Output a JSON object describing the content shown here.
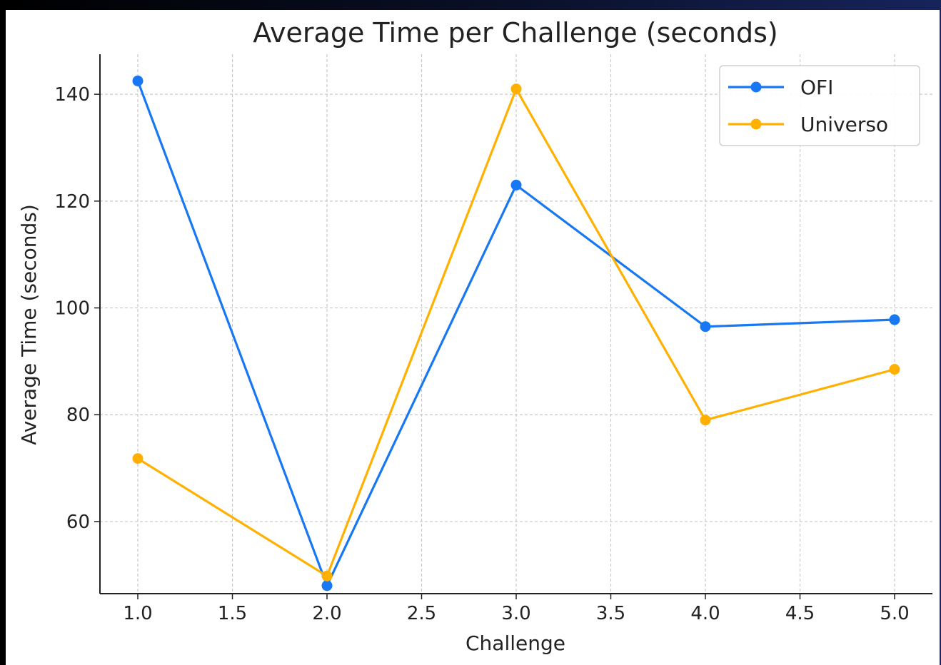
{
  "chart_data": {
    "type": "line",
    "title": "Average Time per Challenge (seconds)",
    "xlabel": "Challenge",
    "ylabel": "Average Time (seconds)",
    "xlim": [
      0.8,
      5.2
    ],
    "ylim": [
      46.5,
      147.5
    ],
    "x_ticks": [
      1.0,
      1.5,
      2.0,
      2.5,
      3.0,
      3.5,
      4.0,
      4.5,
      5.0
    ],
    "x_tick_labels": [
      "1.0",
      "1.5",
      "2.0",
      "2.5",
      "3.0",
      "3.5",
      "4.0",
      "4.5",
      "5.0"
    ],
    "y_ticks": [
      60,
      80,
      100,
      120,
      140
    ],
    "y_tick_labels": [
      "60",
      "80",
      "100",
      "120",
      "140"
    ],
    "grid": true,
    "legend_position": "top-right",
    "x": [
      1,
      2,
      3,
      4,
      5
    ],
    "series": [
      {
        "name": "OFI",
        "color": "#1877F2",
        "marker": "circle",
        "values": [
          142.5,
          48.0,
          123.0,
          96.5,
          97.8
        ]
      },
      {
        "name": "Universo",
        "color": "#FFB000",
        "marker": "circle",
        "values": [
          71.8,
          49.8,
          141.0,
          79.0,
          88.5
        ]
      }
    ]
  }
}
